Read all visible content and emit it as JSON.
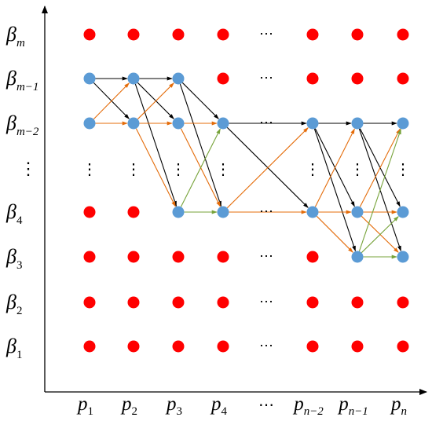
{
  "y_labels": [
    {
      "sym": "β",
      "sub": "m"
    },
    {
      "sym": "β",
      "sub": "m−1"
    },
    {
      "sym": "β",
      "sub": "m−2"
    },
    {
      "sym": "⋮",
      "sub": ""
    },
    {
      "sym": "β",
      "sub": "4"
    },
    {
      "sym": "β",
      "sub": "3"
    },
    {
      "sym": "β",
      "sub": "2"
    },
    {
      "sym": "β",
      "sub": "1"
    }
  ],
  "x_labels": [
    {
      "sym": "p",
      "sub": "1"
    },
    {
      "sym": "p",
      "sub": "2"
    },
    {
      "sym": "p",
      "sub": "3"
    },
    {
      "sym": "p",
      "sub": "4"
    },
    {
      "sym": "⋯",
      "sub": ""
    },
    {
      "sym": "p",
      "sub": "n−2"
    },
    {
      "sym": "p",
      "sub": "n−1"
    },
    {
      "sym": "p",
      "sub": "n"
    }
  ],
  "colors": {
    "red_node": "#ff0000",
    "blue_node": "#5b9bd5",
    "black_edge": "#000000",
    "orange_edge": "#e46c0a",
    "green_edge": "#77a33a",
    "axis": "#000000"
  },
  "node_grid": [
    [
      "red",
      "red",
      "red",
      "red",
      "dots",
      "red",
      "red",
      "red"
    ],
    [
      "blue",
      "blue",
      "blue",
      "red",
      "dots",
      "red",
      "red",
      "red"
    ],
    [
      "blue",
      "blue",
      "blue",
      "blue",
      "dots",
      "blue",
      "blue",
      "blue"
    ],
    [
      "vdots",
      "vdots",
      "vdots",
      "vdots",
      "none",
      "vdots",
      "vdots",
      "vdots"
    ],
    [
      "red",
      "red",
      "blue",
      "blue",
      "dots",
      "blue",
      "blue",
      "blue"
    ],
    [
      "red",
      "red",
      "red",
      "red",
      "dots",
      "red",
      "blue",
      "blue"
    ],
    [
      "red",
      "red",
      "red",
      "red",
      "dots",
      "red",
      "red",
      "red"
    ],
    [
      "red",
      "red",
      "red",
      "red",
      "dots",
      "red",
      "red",
      "red"
    ]
  ],
  "edges": [
    {
      "from": [
        0,
        1
      ],
      "to": [
        1,
        1
      ],
      "color": "black"
    },
    {
      "from": [
        0,
        1
      ],
      "to": [
        1,
        2
      ],
      "color": "black"
    },
    {
      "from": [
        0,
        2
      ],
      "to": [
        1,
        1
      ],
      "color": "orange"
    },
    {
      "from": [
        0,
        2
      ],
      "to": [
        1,
        2
      ],
      "color": "orange"
    },
    {
      "from": [
        1,
        1
      ],
      "to": [
        2,
        1
      ],
      "color": "black"
    },
    {
      "from": [
        1,
        1
      ],
      "to": [
        2,
        2
      ],
      "color": "black"
    },
    {
      "from": [
        1,
        1
      ],
      "to": [
        2,
        4
      ],
      "color": "black"
    },
    {
      "from": [
        1,
        2
      ],
      "to": [
        2,
        1
      ],
      "color": "orange"
    },
    {
      "from": [
        1,
        2
      ],
      "to": [
        2,
        2
      ],
      "color": "orange"
    },
    {
      "from": [
        1,
        2
      ],
      "to": [
        2,
        4
      ],
      "color": "orange"
    },
    {
      "from": [
        2,
        1
      ],
      "to": [
        3,
        2
      ],
      "color": "black"
    },
    {
      "from": [
        2,
        1
      ],
      "to": [
        3,
        4
      ],
      "color": "black"
    },
    {
      "from": [
        2,
        2
      ],
      "to": [
        3,
        2
      ],
      "color": "orange"
    },
    {
      "from": [
        2,
        2
      ],
      "to": [
        3,
        4
      ],
      "color": "orange"
    },
    {
      "from": [
        2,
        4
      ],
      "to": [
        3,
        2
      ],
      "color": "green"
    },
    {
      "from": [
        2,
        4
      ],
      "to": [
        3,
        4
      ],
      "color": "green"
    },
    {
      "from": [
        3,
        2
      ],
      "to": [
        5,
        2
      ],
      "color": "black"
    },
    {
      "from": [
        3,
        2
      ],
      "to": [
        5,
        4
      ],
      "color": "black"
    },
    {
      "from": [
        3,
        4
      ],
      "to": [
        5,
        2
      ],
      "color": "orange"
    },
    {
      "from": [
        3,
        4
      ],
      "to": [
        5,
        4
      ],
      "color": "orange"
    },
    {
      "from": [
        5,
        2
      ],
      "to": [
        6,
        2
      ],
      "color": "black"
    },
    {
      "from": [
        5,
        2
      ],
      "to": [
        6,
        4
      ],
      "color": "black"
    },
    {
      "from": [
        5,
        2
      ],
      "to": [
        6,
        5
      ],
      "color": "black"
    },
    {
      "from": [
        5,
        4
      ],
      "to": [
        6,
        2
      ],
      "color": "orange"
    },
    {
      "from": [
        5,
        4
      ],
      "to": [
        6,
        4
      ],
      "color": "orange"
    },
    {
      "from": [
        5,
        4
      ],
      "to": [
        6,
        5
      ],
      "color": "orange"
    },
    {
      "from": [
        6,
        2
      ],
      "to": [
        7,
        2
      ],
      "color": "black"
    },
    {
      "from": [
        6,
        2
      ],
      "to": [
        7,
        4
      ],
      "color": "black"
    },
    {
      "from": [
        6,
        2
      ],
      "to": [
        7,
        5
      ],
      "color": "black"
    },
    {
      "from": [
        6,
        4
      ],
      "to": [
        7,
        2
      ],
      "color": "orange"
    },
    {
      "from": [
        6,
        4
      ],
      "to": [
        7,
        4
      ],
      "color": "orange"
    },
    {
      "from": [
        6,
        4
      ],
      "to": [
        7,
        5
      ],
      "color": "orange"
    },
    {
      "from": [
        6,
        5
      ],
      "to": [
        7,
        2
      ],
      "color": "green"
    },
    {
      "from": [
        6,
        5
      ],
      "to": [
        7,
        4
      ],
      "color": "green"
    },
    {
      "from": [
        6,
        5
      ],
      "to": [
        7,
        5
      ],
      "color": "green"
    }
  ]
}
